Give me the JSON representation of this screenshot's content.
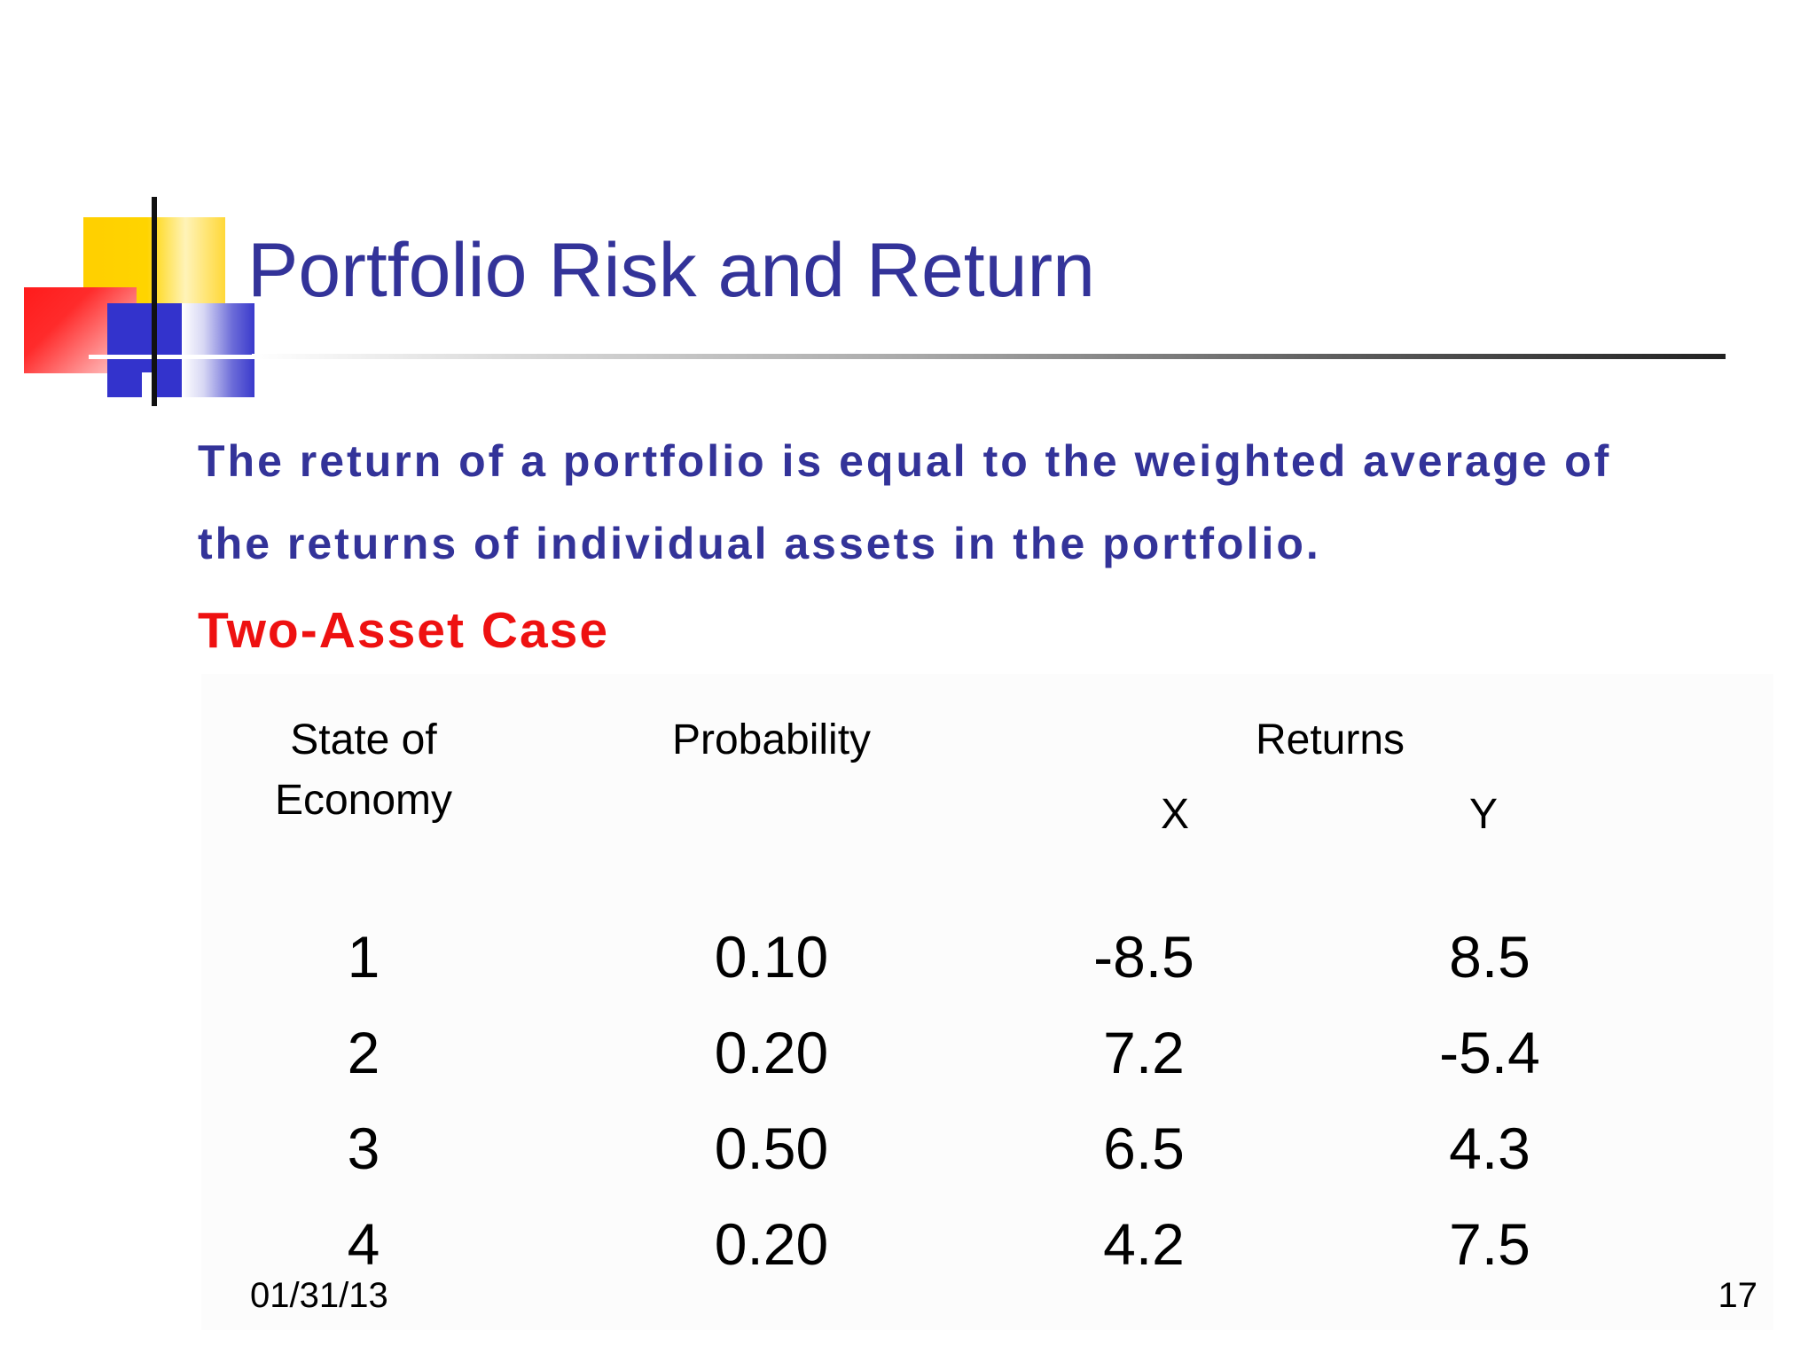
{
  "slide": {
    "title": "Portfolio Risk and Return",
    "intro_line_1": "The return of a portfolio is equal to the weighted average of",
    "intro_line_2": "the returns of individual assets in the portfolio.",
    "subheading": "Two-Asset Case"
  },
  "table": {
    "header_state_line_1": "State of",
    "header_state_line_2": "Economy",
    "header_probability": "Probability",
    "header_returns": "Returns",
    "header_x": "X",
    "header_y": "Y",
    "rows": [
      {
        "state": "1",
        "probability": "0.10",
        "x": "-8.5",
        "y": "8.5"
      },
      {
        "state": "2",
        "probability": "0.20",
        "x": "7.2",
        "y": "-5.4"
      },
      {
        "state": "3",
        "probability": "0.50",
        "x": "6.5",
        "y": "4.3"
      },
      {
        "state": "4",
        "probability": "0.20",
        "x": "4.2",
        "y": "7.5"
      }
    ]
  },
  "footer": {
    "date": "01/31/13",
    "page_number": "17"
  },
  "colors": {
    "title": "#333399",
    "subheading": "#EE1111",
    "body_text": "#000000"
  }
}
